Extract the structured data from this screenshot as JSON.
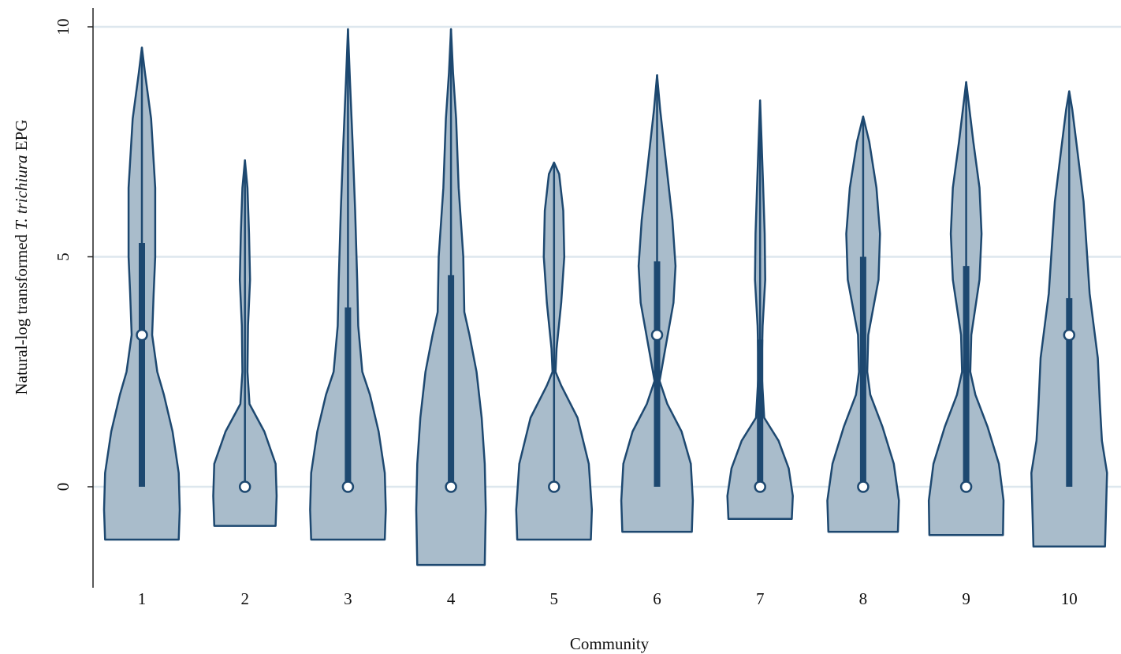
{
  "chart_data": {
    "type": "violin",
    "xlabel": "Community",
    "ylabel_parts": [
      "Natural-log transformed ",
      "T. trichiura",
      " EPG"
    ],
    "categories": [
      "1",
      "2",
      "3",
      "4",
      "5",
      "6",
      "7",
      "8",
      "9",
      "10"
    ],
    "yticks": [
      0,
      5,
      10
    ],
    "ylim": [
      -2.1,
      10.4
    ],
    "grid": true,
    "colors": {
      "fill": "#a9bccb",
      "stroke": "#1d4870",
      "grid": "#dde7ee"
    },
    "series": [
      {
        "category": "1",
        "median": 3.3,
        "q1": 0,
        "q3": 5.3,
        "min": -1.15,
        "max": 9.55,
        "profile": [
          [
            -1.15,
            0.72
          ],
          [
            -0.5,
            0.74
          ],
          [
            0.3,
            0.72
          ],
          [
            1.2,
            0.6
          ],
          [
            2.0,
            0.43
          ],
          [
            2.5,
            0.3
          ],
          [
            3.3,
            0.2
          ],
          [
            4.2,
            0.23
          ],
          [
            5.0,
            0.26
          ],
          [
            6.5,
            0.26
          ],
          [
            8.0,
            0.18
          ],
          [
            9.0,
            0.06
          ],
          [
            9.55,
            0.0
          ]
        ]
      },
      {
        "category": "2",
        "median": 0,
        "q1": 0,
        "q3": 0,
        "min": -0.85,
        "max": 7.1,
        "profile": [
          [
            -0.85,
            0.6
          ],
          [
            -0.2,
            0.62
          ],
          [
            0.5,
            0.6
          ],
          [
            1.2,
            0.38
          ],
          [
            1.8,
            0.09
          ],
          [
            2.5,
            0.05
          ],
          [
            3.5,
            0.06
          ],
          [
            4.5,
            0.1
          ],
          [
            5.5,
            0.08
          ],
          [
            6.5,
            0.05
          ],
          [
            7.1,
            0.0
          ]
        ]
      },
      {
        "category": "3",
        "median": 0,
        "q1": 0,
        "q3": 3.9,
        "min": -1.15,
        "max": 9.95,
        "profile": [
          [
            -1.15,
            0.72
          ],
          [
            -0.5,
            0.74
          ],
          [
            0.3,
            0.72
          ],
          [
            1.2,
            0.6
          ],
          [
            2.0,
            0.43
          ],
          [
            2.5,
            0.28
          ],
          [
            3.5,
            0.2
          ],
          [
            4.5,
            0.18
          ],
          [
            6.0,
            0.14
          ],
          [
            7.5,
            0.09
          ],
          [
            8.8,
            0.04
          ],
          [
            9.95,
            0.0
          ]
        ]
      },
      {
        "category": "4",
        "median": 0,
        "q1": 0,
        "q3": 4.6,
        "min": -1.7,
        "max": 9.95,
        "profile": [
          [
            -1.7,
            0.66
          ],
          [
            -0.5,
            0.68
          ],
          [
            0.5,
            0.66
          ],
          [
            1.5,
            0.6
          ],
          [
            2.5,
            0.5
          ],
          [
            3.3,
            0.36
          ],
          [
            3.8,
            0.26
          ],
          [
            5.0,
            0.24
          ],
          [
            6.5,
            0.15
          ],
          [
            8.0,
            0.1
          ],
          [
            9.0,
            0.04
          ],
          [
            9.95,
            0.0
          ]
        ]
      },
      {
        "category": "5",
        "median": 0,
        "q1": 0,
        "q3": 0,
        "min": -1.15,
        "max": 7.05,
        "profile": [
          [
            -1.15,
            0.72
          ],
          [
            -0.5,
            0.74
          ],
          [
            0.5,
            0.68
          ],
          [
            1.5,
            0.46
          ],
          [
            2.2,
            0.14
          ],
          [
            2.5,
            0.03
          ],
          [
            3.0,
            0.05
          ],
          [
            4.0,
            0.14
          ],
          [
            5.0,
            0.2
          ],
          [
            6.0,
            0.18
          ],
          [
            6.8,
            0.1
          ],
          [
            7.05,
            0.0
          ]
        ]
      },
      {
        "category": "6",
        "median": 3.3,
        "q1": 0,
        "q3": 4.9,
        "min": -0.98,
        "max": 8.95,
        "profile": [
          [
            -0.98,
            0.68
          ],
          [
            -0.3,
            0.7
          ],
          [
            0.5,
            0.66
          ],
          [
            1.2,
            0.48
          ],
          [
            1.8,
            0.2
          ],
          [
            2.3,
            0.05
          ],
          [
            3.0,
            0.16
          ],
          [
            4.0,
            0.32
          ],
          [
            4.8,
            0.36
          ],
          [
            5.8,
            0.3
          ],
          [
            7.0,
            0.18
          ],
          [
            8.2,
            0.06
          ],
          [
            8.95,
            0.0
          ]
        ]
      },
      {
        "category": "7",
        "median": 0,
        "q1": 0,
        "q3": 3.2,
        "min": -0.7,
        "max": 8.4,
        "profile": [
          [
            -0.7,
            0.62
          ],
          [
            -0.2,
            0.64
          ],
          [
            0.4,
            0.56
          ],
          [
            1.0,
            0.36
          ],
          [
            1.5,
            0.08
          ],
          [
            2.5,
            0.03
          ],
          [
            3.5,
            0.05
          ],
          [
            4.5,
            0.1
          ],
          [
            5.5,
            0.09
          ],
          [
            6.5,
            0.06
          ],
          [
            7.5,
            0.03
          ],
          [
            8.4,
            0.0
          ]
        ]
      },
      {
        "category": "8",
        "median": 0,
        "q1": 0,
        "q3": 5.0,
        "min": -0.98,
        "max": 8.05,
        "profile": [
          [
            -0.98,
            0.68
          ],
          [
            -0.3,
            0.7
          ],
          [
            0.5,
            0.6
          ],
          [
            1.3,
            0.38
          ],
          [
            2.0,
            0.14
          ],
          [
            2.5,
            0.08
          ],
          [
            3.3,
            0.1
          ],
          [
            4.5,
            0.3
          ],
          [
            5.5,
            0.33
          ],
          [
            6.5,
            0.26
          ],
          [
            7.5,
            0.12
          ],
          [
            8.05,
            0.0
          ]
        ]
      },
      {
        "category": "9",
        "median": 0,
        "q1": 0,
        "q3": 4.8,
        "min": -1.05,
        "max": 8.8,
        "profile": [
          [
            -1.05,
            0.72
          ],
          [
            -0.3,
            0.73
          ],
          [
            0.5,
            0.64
          ],
          [
            1.3,
            0.42
          ],
          [
            2.0,
            0.18
          ],
          [
            2.5,
            0.08
          ],
          [
            3.3,
            0.1
          ],
          [
            4.5,
            0.26
          ],
          [
            5.5,
            0.3
          ],
          [
            6.5,
            0.26
          ],
          [
            7.5,
            0.14
          ],
          [
            8.8,
            0.0
          ]
        ]
      },
      {
        "category": "10",
        "median": 3.3,
        "q1": 0,
        "q3": 4.1,
        "min": -1.3,
        "max": 8.6,
        "profile": [
          [
            -1.3,
            0.7
          ],
          [
            -0.5,
            0.72
          ],
          [
            0.3,
            0.74
          ],
          [
            1.0,
            0.64
          ],
          [
            1.8,
            0.6
          ],
          [
            2.8,
            0.56
          ],
          [
            3.5,
            0.48
          ],
          [
            4.2,
            0.4
          ],
          [
            5.2,
            0.34
          ],
          [
            6.2,
            0.28
          ],
          [
            7.3,
            0.16
          ],
          [
            8.2,
            0.06
          ],
          [
            8.6,
            0.0
          ]
        ]
      }
    ]
  }
}
